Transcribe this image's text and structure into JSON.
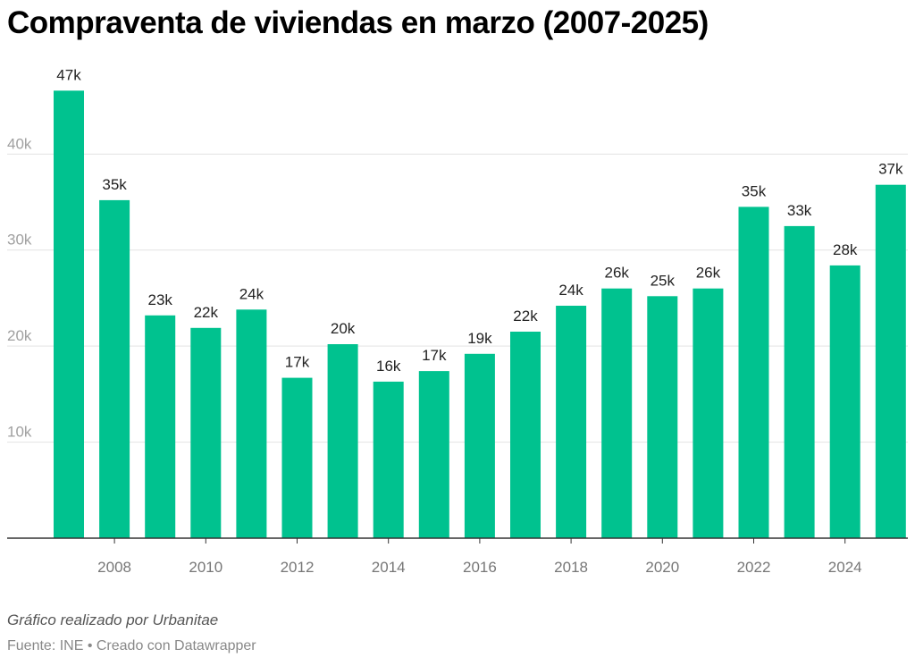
{
  "header": {
    "title": "Compraventa de viviendas en marzo (2007-2025)"
  },
  "footer": {
    "note": "Gráfico realizado por Urbanitae",
    "source": "Fuente: INE • Creado con Datawrapper"
  },
  "colors": {
    "bar": "#00c28f",
    "grid": "#e3e3e3",
    "axis": "#333333",
    "tick_label": "#a0a0a0",
    "x_label": "#777777"
  },
  "chart_data": {
    "type": "bar",
    "title": "Compraventa de viviendas en marzo (2007-2025)",
    "xlabel": "",
    "ylabel": "",
    "categories": [
      2007,
      2008,
      2009,
      2010,
      2011,
      2012,
      2013,
      2014,
      2015,
      2016,
      2017,
      2018,
      2019,
      2020,
      2021,
      2022,
      2023,
      2024,
      2025
    ],
    "values": [
      46600,
      35200,
      23200,
      21900,
      23800,
      16700,
      20200,
      16300,
      17400,
      19200,
      21500,
      24200,
      26000,
      25200,
      26000,
      34500,
      32500,
      28400,
      36800
    ],
    "data_labels": [
      "47k",
      "35k",
      "23k",
      "22k",
      "24k",
      "17k",
      "20k",
      "16k",
      "17k",
      "19k",
      "22k",
      "24k",
      "26k",
      "25k",
      "26k",
      "35k",
      "33k",
      "28k",
      "37k"
    ],
    "x_tick_labels": [
      "2008",
      "2010",
      "2012",
      "2014",
      "2016",
      "2018",
      "2020",
      "2022",
      "2024"
    ],
    "y_ticks": [
      10000,
      20000,
      30000,
      40000
    ],
    "y_tick_labels": [
      "10k",
      "20k",
      "30k",
      "40k"
    ],
    "ylim": [
      0,
      50000
    ],
    "grid": true,
    "legend": "none"
  }
}
